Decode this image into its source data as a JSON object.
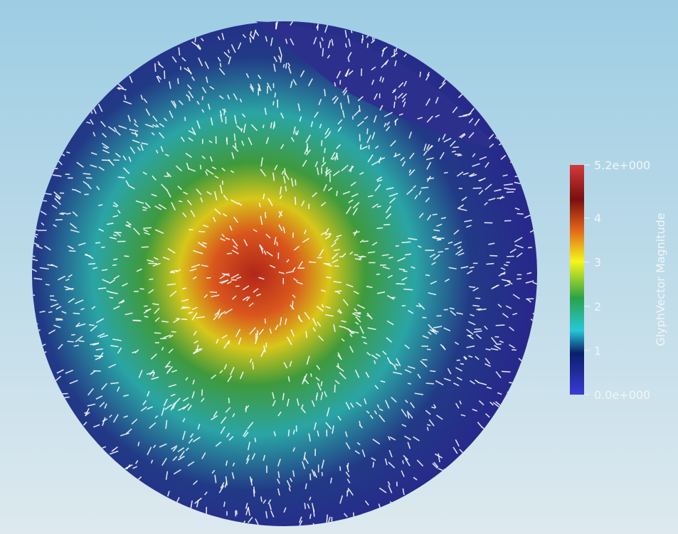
{
  "colorbar": {
    "title": "GlyphVector Magnitude",
    "range": [
      0,
      5.2
    ],
    "ticks": [
      {
        "value": 5.2,
        "label": "5.2e+000"
      },
      4,
      3,
      2,
      1,
      {
        "value": 0,
        "label": "0.0e+000"
      }
    ]
  }
}
